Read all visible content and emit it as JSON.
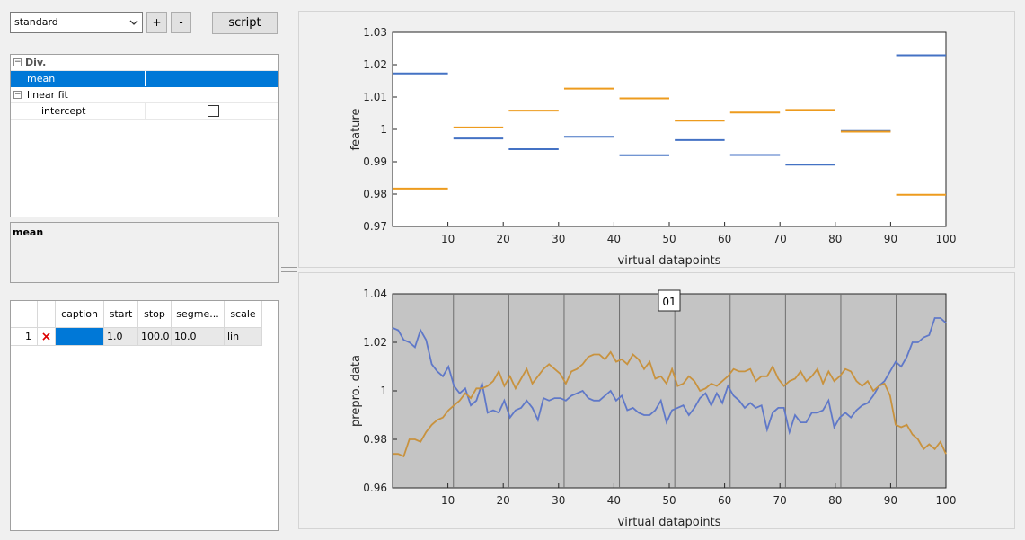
{
  "toolbar": {
    "preset_value": "standard",
    "add_label": "+",
    "remove_label": "-",
    "script_label": "script"
  },
  "properties": {
    "rows": [
      {
        "label": "Div.",
        "bold": true,
        "expander": "−"
      },
      {
        "label": "mean",
        "selected": true
      },
      {
        "label": "linear fit",
        "expander": "−"
      },
      {
        "label": "intercept",
        "checkbox": false
      }
    ],
    "description_title": "mean"
  },
  "segments_table": {
    "headers": [
      "caption",
      "start",
      "stop",
      "segme...",
      "scale"
    ],
    "rows": [
      {
        "index": "1",
        "remove_icon": "×",
        "caption": "",
        "start": "1.0",
        "stop": "100.0",
        "segments": "10.0",
        "scale": "lin"
      }
    ]
  },
  "colors": {
    "blue": "#4472c4",
    "orange": "#ed9b1e",
    "blue_data": "#5f78c8",
    "orange_data": "#c8923e",
    "plot_bg": "#c4c4c4",
    "selection": "#0078d7"
  },
  "chart_data": [
    {
      "type": "line",
      "xlabel": "virtual datapoints",
      "ylabel": "feature",
      "xlim": [
        0,
        100
      ],
      "ylim": [
        0.97,
        1.03
      ],
      "xticks": [
        10,
        20,
        30,
        40,
        50,
        60,
        70,
        80,
        90,
        100
      ],
      "yticks": [
        "0.97",
        "0.98",
        "0.99",
        "1",
        "1.01",
        "1.02",
        "1.03"
      ],
      "ytick_values": [
        0.97,
        0.98,
        0.99,
        1.0,
        1.01,
        1.02,
        1.03
      ],
      "segments_x": [
        [
          0,
          10
        ],
        [
          11,
          20
        ],
        [
          21,
          30
        ],
        [
          31,
          40
        ],
        [
          41,
          50
        ],
        [
          51,
          60
        ],
        [
          61,
          70
        ],
        [
          71,
          80
        ],
        [
          81,
          90
        ],
        [
          91,
          100
        ]
      ],
      "series": [
        {
          "color": "blue",
          "values": [
            1.0173,
            0.9972,
            0.9939,
            0.9977,
            0.992,
            0.9967,
            0.9921,
            0.9891,
            0.9995,
            1.0229
          ]
        },
        {
          "color": "orange",
          "values": [
            0.9817,
            1.0006,
            1.0058,
            1.0126,
            1.0096,
            1.0027,
            1.0052,
            1.006,
            0.9993,
            0.9798
          ]
        }
      ]
    },
    {
      "type": "line",
      "xlabel": "virtual datapoints",
      "ylabel": "prepro. data",
      "xlim": [
        0,
        100
      ],
      "ylim": [
        0.96,
        1.04
      ],
      "xticks": [
        10,
        20,
        30,
        40,
        50,
        60,
        70,
        80,
        90,
        100
      ],
      "yticks": [
        "0.96",
        "0.98",
        "1",
        "1.02",
        "1.04"
      ],
      "ytick_values": [
        0.96,
        0.98,
        1.0,
        1.02,
        1.04
      ],
      "segment_boundaries": [
        11,
        21,
        31,
        41,
        51,
        61,
        71,
        81,
        91
      ],
      "annotation": "01",
      "series": [
        {
          "color": "blue_data",
          "values": [
            1.026,
            1.025,
            1.021,
            1.02,
            1.018,
            1.025,
            1.021,
            1.011,
            1.008,
            1.006,
            1.01,
            1.002,
            0.999,
            1.001,
            0.994,
            0.996,
            1.003,
            0.991,
            0.992,
            0.991,
            0.996,
            0.989,
            0.992,
            0.993,
            0.996,
            0.993,
            0.988,
            0.997,
            0.996,
            0.997,
            0.997,
            0.996,
            0.998,
            0.999,
            1.0,
            0.997,
            0.996,
            0.996,
            0.998,
            1.0,
            0.996,
            0.998,
            0.992,
            0.993,
            0.991,
            0.99,
            0.99,
            0.992,
            0.996,
            0.987,
            0.992,
            0.993,
            0.994,
            0.99,
            0.993,
            0.997,
            0.999,
            0.994,
            0.999,
            0.995,
            1.002,
            0.998,
            0.996,
            0.993,
            0.995,
            0.993,
            0.994,
            0.984,
            0.991,
            0.993,
            0.993,
            0.983,
            0.99,
            0.987,
            0.987,
            0.991,
            0.991,
            0.992,
            0.996,
            0.985,
            0.989,
            0.991,
            0.989,
            0.992,
            0.994,
            0.995,
            0.998,
            1.002,
            1.004,
            1.008,
            1.012,
            1.01,
            1.014,
            1.02,
            1.02,
            1.022,
            1.023,
            1.03,
            1.03,
            1.028
          ]
        },
        {
          "color": "orange_data",
          "values": [
            0.974,
            0.974,
            0.973,
            0.98,
            0.98,
            0.979,
            0.983,
            0.986,
            0.988,
            0.989,
            0.992,
            0.994,
            0.996,
            0.999,
            0.997,
            1.001,
            1.001,
            1.002,
            1.004,
            1.008,
            1.002,
            1.006,
            1.001,
            1.005,
            1.009,
            1.003,
            1.006,
            1.009,
            1.011,
            1.009,
            1.007,
            1.003,
            1.008,
            1.009,
            1.011,
            1.014,
            1.015,
            1.015,
            1.013,
            1.016,
            1.012,
            1.013,
            1.011,
            1.015,
            1.013,
            1.009,
            1.012,
            1.005,
            1.006,
            1.003,
            1.009,
            1.002,
            1.003,
            1.006,
            1.004,
            1.0,
            1.001,
            1.003,
            1.002,
            1.004,
            1.006,
            1.009,
            1.008,
            1.008,
            1.009,
            1.004,
            1.006,
            1.006,
            1.01,
            1.005,
            1.002,
            1.004,
            1.005,
            1.008,
            1.004,
            1.006,
            1.009,
            1.003,
            1.008,
            1.004,
            1.006,
            1.009,
            1.008,
            1.004,
            1.002,
            1.004,
            1.0,
            1.002,
            1.003,
            0.998,
            0.986,
            0.985,
            0.986,
            0.982,
            0.98,
            0.976,
            0.978,
            0.976,
            0.979,
            0.974
          ]
        }
      ]
    }
  ]
}
